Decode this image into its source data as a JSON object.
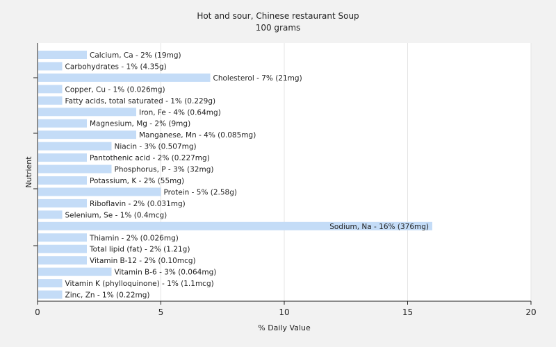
{
  "chart_data": {
    "type": "bar",
    "orientation": "horizontal",
    "title": "Hot and sour, Chinese restaurant Soup",
    "subtitle": "100 grams",
    "xlabel": "% Daily Value",
    "ylabel": "Nutrient",
    "xlim": [
      0,
      20
    ],
    "xticks": [
      0,
      5,
      10,
      15,
      20
    ],
    "grid": "vertical",
    "legend": "none",
    "bar_color": "#c4dcf7",
    "bars": [
      {
        "label": "Calcium, Ca - 2% (19mg)",
        "value": 2
      },
      {
        "label": "Carbohydrates - 1% (4.35g)",
        "value": 1
      },
      {
        "label": "Cholesterol - 7% (21mg)",
        "value": 7
      },
      {
        "label": "Copper, Cu - 1% (0.026mg)",
        "value": 1
      },
      {
        "label": "Fatty acids, total saturated - 1% (0.229g)",
        "value": 1
      },
      {
        "label": "Iron, Fe - 4% (0.64mg)",
        "value": 4
      },
      {
        "label": "Magnesium, Mg - 2% (9mg)",
        "value": 2
      },
      {
        "label": "Manganese, Mn - 4% (0.085mg)",
        "value": 4
      },
      {
        "label": "Niacin - 3% (0.507mg)",
        "value": 3
      },
      {
        "label": "Pantothenic acid - 2% (0.227mg)",
        "value": 2
      },
      {
        "label": "Phosphorus, P - 3% (32mg)",
        "value": 3
      },
      {
        "label": "Potassium, K - 2% (55mg)",
        "value": 2
      },
      {
        "label": "Protein - 5% (2.58g)",
        "value": 5
      },
      {
        "label": "Riboflavin - 2% (0.031mg)",
        "value": 2
      },
      {
        "label": "Selenium, Se - 1% (0.4mcg)",
        "value": 1
      },
      {
        "label": "Sodium, Na - 16% (376mg)",
        "value": 16
      },
      {
        "label": "Thiamin - 2% (0.026mg)",
        "value": 2
      },
      {
        "label": "Total lipid (fat) - 2% (1.21g)",
        "value": 2
      },
      {
        "label": "Vitamin B-12 - 2% (0.10mcg)",
        "value": 2
      },
      {
        "label": "Vitamin B-6 - 3% (0.064mg)",
        "value": 3
      },
      {
        "label": "Vitamin K (phylloquinone) - 1% (1.1mcg)",
        "value": 1
      },
      {
        "label": "Zinc, Zn - 1% (0.22mg)",
        "value": 1
      }
    ]
  }
}
